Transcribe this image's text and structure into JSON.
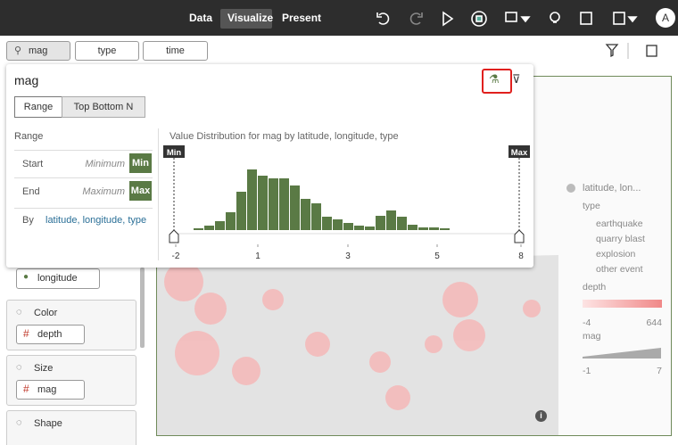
{
  "toolbar": {
    "tabs": [
      "Data",
      "Visualize",
      "Present"
    ],
    "avatar": "A"
  },
  "filters": [
    "mag",
    "type",
    "time"
  ],
  "filter_panel": {
    "title": "mag",
    "tabs": [
      "Range",
      "Top Bottom N"
    ],
    "section": "Range",
    "rows": [
      {
        "label": "Start",
        "placeholder": "Minimum",
        "button": "Min"
      },
      {
        "label": "End",
        "placeholder": "Maximum",
        "button": "Max"
      }
    ],
    "by_label": "By",
    "by_value": "latitude, longitude, type",
    "histogram": {
      "title": "Value Distribution for mag by latitude, longitude, type",
      "counts": [
        2,
        5,
        10,
        20,
        43,
        68,
        61,
        58,
        58,
        50,
        35,
        30,
        15,
        12,
        8,
        5,
        4,
        16,
        22,
        15,
        6,
        3,
        3,
        2
      ],
      "color": "#5a7a45",
      "min_label": "Min",
      "max_label": "Max",
      "xticks": [
        -2,
        1,
        3,
        5,
        8
      ]
    }
  },
  "grammar": {
    "longitude": "longitude",
    "sections": [
      {
        "title": "Color",
        "field": "depth"
      },
      {
        "title": "Size",
        "field": "mag"
      },
      {
        "title": "Shape"
      }
    ]
  },
  "legend": {
    "title": "latitude, lon...",
    "type_title": "type",
    "types": [
      "earthquake",
      "quarry blast",
      "explosion",
      "other event"
    ],
    "depth_title": "depth",
    "depth_range": [
      -4,
      644
    ],
    "mag_title": "mag",
    "mag_range": [
      -1,
      7
    ]
  }
}
